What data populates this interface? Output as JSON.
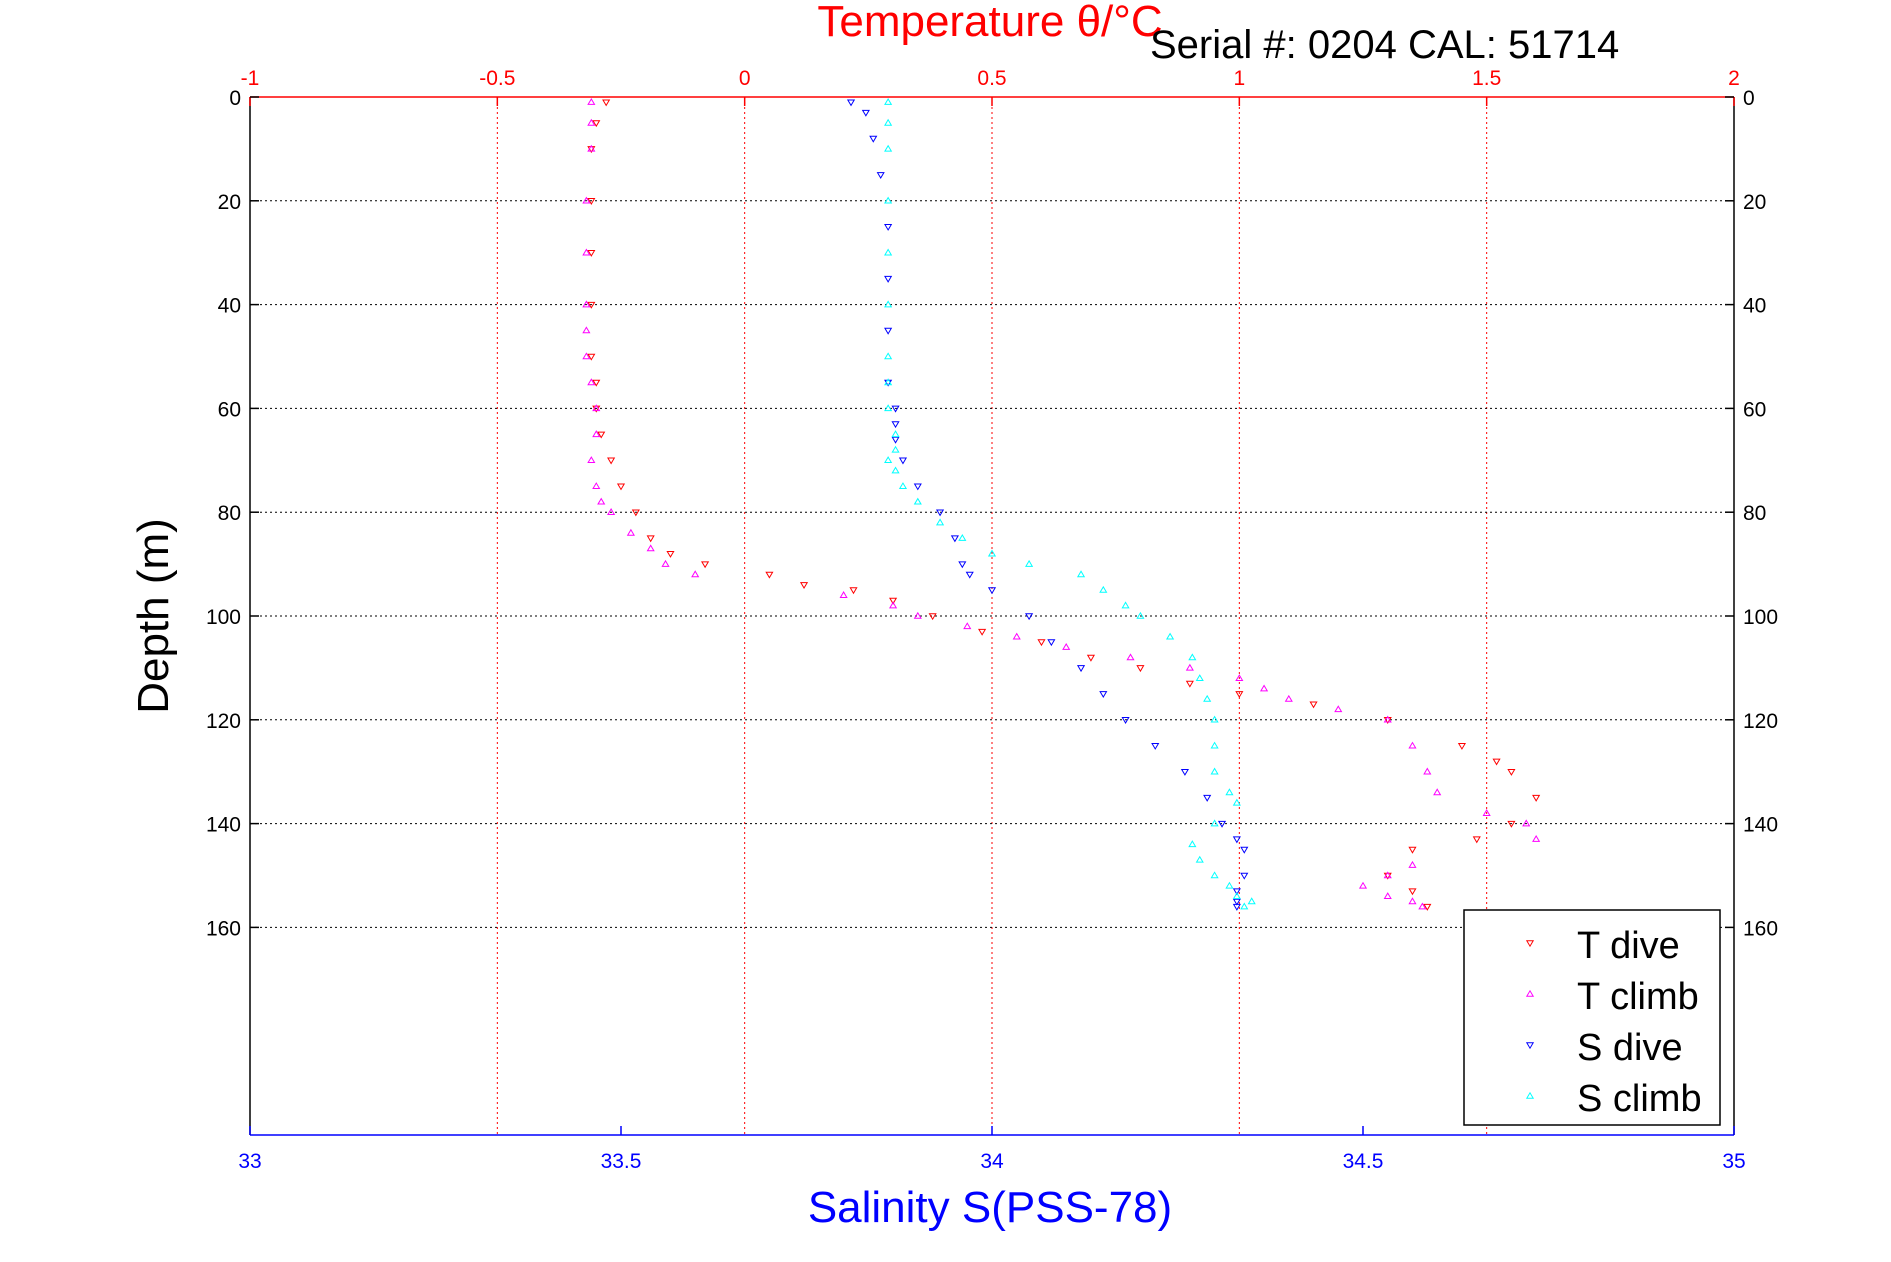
{
  "chart_data": {
    "type": "scatter",
    "title_top": "Temperature θ/°C",
    "serial_label": "Serial #: 0204  CAL: 51714",
    "xlabel_bottom": "Salinity S(PSS-78)",
    "ylabel": "Depth (m)",
    "x_top": {
      "lim": [
        -1,
        2
      ],
      "ticks": [
        "-1",
        "-0.5",
        "0",
        "0.5",
        "1",
        "1.5",
        "2"
      ],
      "color": "#ff0000"
    },
    "x_bottom": {
      "lim": [
        33,
        35
      ],
      "ticks": [
        "33",
        "33.5",
        "34",
        "34.5",
        "35"
      ],
      "color": "#0000ff"
    },
    "y": {
      "lim": [
        0,
        200
      ],
      "reversed": true,
      "ticks": [
        "0",
        "20",
        "40",
        "60",
        "80",
        "100",
        "120",
        "140",
        "160"
      ]
    },
    "grid": true,
    "legend": {
      "placement": "bottom-right"
    },
    "series": [
      {
        "name": "T dive",
        "axis": "temperature",
        "color": "#ff0000",
        "marker": "triangle-down",
        "x": [
          -0.28,
          -0.3,
          -0.31,
          -0.31,
          -0.31,
          -0.31,
          -0.31,
          -0.3,
          -0.3,
          -0.29,
          -0.27,
          -0.25,
          -0.22,
          -0.19,
          -0.15,
          -0.08,
          0.05,
          0.12,
          0.22,
          0.3,
          0.38,
          0.48,
          0.6,
          0.7,
          0.8,
          0.9,
          1.0,
          1.15,
          1.3,
          1.45,
          1.52,
          1.55,
          1.6,
          1.55,
          1.48,
          1.35,
          1.3,
          1.35,
          1.38
        ],
        "y": [
          1,
          5,
          10,
          20,
          30,
          40,
          50,
          55,
          60,
          65,
          70,
          75,
          80,
          85,
          88,
          90,
          92,
          94,
          95,
          97,
          100,
          103,
          105,
          108,
          110,
          113,
          115,
          117,
          120,
          125,
          128,
          130,
          135,
          140,
          143,
          145,
          150,
          153,
          156
        ]
      },
      {
        "name": "T climb",
        "axis": "temperature",
        "color": "#ff00ff",
        "marker": "triangle-up",
        "x": [
          -0.31,
          -0.31,
          -0.31,
          -0.32,
          -0.32,
          -0.32,
          -0.32,
          -0.32,
          -0.31,
          -0.3,
          -0.3,
          -0.31,
          -0.3,
          -0.29,
          -0.27,
          -0.23,
          -0.19,
          -0.16,
          -0.1,
          0.2,
          0.3,
          0.35,
          0.45,
          0.55,
          0.65,
          0.78,
          0.9,
          1.0,
          1.05,
          1.1,
          1.2,
          1.3,
          1.35,
          1.38,
          1.4,
          1.5,
          1.58,
          1.6,
          1.35,
          1.3,
          1.25,
          1.3,
          1.35,
          1.37
        ],
        "y": [
          1,
          5,
          10,
          20,
          30,
          40,
          45,
          50,
          55,
          60,
          65,
          70,
          75,
          78,
          80,
          84,
          87,
          90,
          92,
          96,
          98,
          100,
          102,
          104,
          106,
          108,
          110,
          112,
          114,
          116,
          118,
          120,
          125,
          130,
          134,
          138,
          140,
          143,
          148,
          150,
          152,
          154,
          155,
          156
        ]
      },
      {
        "name": "S dive",
        "axis": "salinity",
        "color": "#0000ff",
        "marker": "triangle-down",
        "x": [
          33.81,
          33.83,
          33.84,
          33.85,
          33.86,
          33.86,
          33.86,
          33.86,
          33.87,
          33.87,
          33.87,
          33.88,
          33.9,
          33.93,
          33.95,
          33.96,
          33.97,
          34.0,
          34.05,
          34.08,
          34.12,
          34.15,
          34.18,
          34.22,
          34.26,
          34.29,
          34.31,
          34.33,
          34.34,
          34.34,
          34.33,
          34.33,
          34.33
        ],
        "y": [
          1,
          3,
          8,
          15,
          25,
          35,
          45,
          55,
          60,
          63,
          66,
          70,
          75,
          80,
          85,
          90,
          92,
          95,
          100,
          105,
          110,
          115,
          120,
          125,
          130,
          135,
          140,
          143,
          145,
          150,
          153,
          155,
          156
        ]
      },
      {
        "name": "S climb",
        "axis": "salinity",
        "color": "#00ffff",
        "marker": "triangle-up",
        "x": [
          33.86,
          33.86,
          33.86,
          33.86,
          33.86,
          33.86,
          33.86,
          33.86,
          33.86,
          33.87,
          33.87,
          33.86,
          33.87,
          33.88,
          33.9,
          33.93,
          33.96,
          34.0,
          34.05,
          34.12,
          34.15,
          34.18,
          34.2,
          34.24,
          34.27,
          34.28,
          34.29,
          34.3,
          34.3,
          34.3,
          34.32,
          34.33,
          34.3,
          34.27,
          34.28,
          34.3,
          34.32,
          34.33,
          34.35,
          34.34
        ],
        "y": [
          1,
          5,
          10,
          20,
          30,
          40,
          50,
          55,
          60,
          65,
          68,
          70,
          72,
          75,
          78,
          82,
          85,
          88,
          90,
          92,
          95,
          98,
          100,
          104,
          108,
          112,
          116,
          120,
          125,
          130,
          134,
          136,
          140,
          144,
          147,
          150,
          152,
          154,
          155,
          156
        ]
      }
    ]
  }
}
